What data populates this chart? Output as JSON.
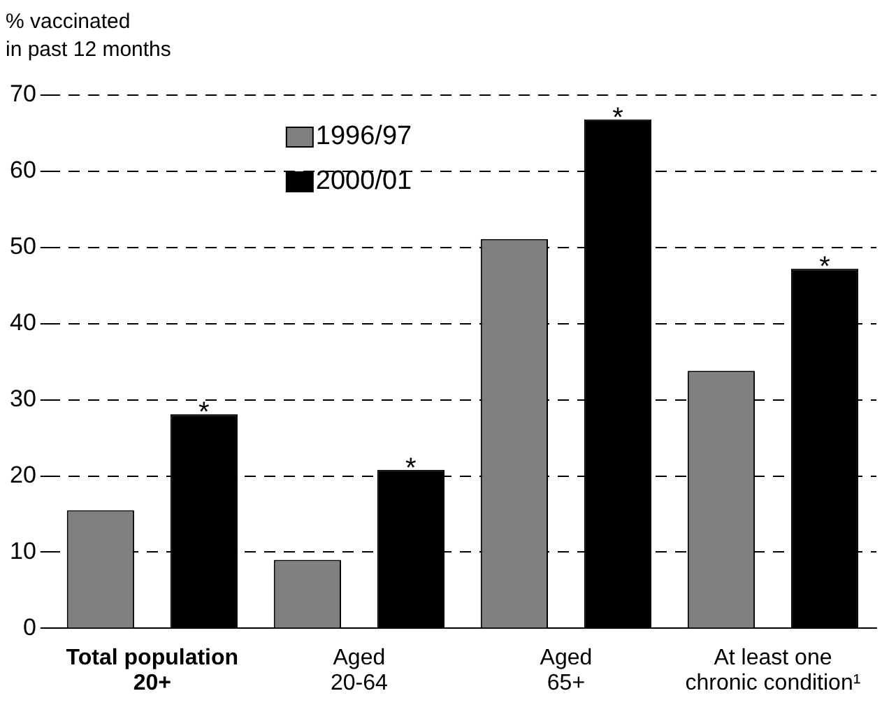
{
  "chart_data": {
    "type": "bar",
    "ylabel": "% vaccinated\nin past 12 months",
    "categories": [
      "Total population\n20+",
      "Aged\n20-64",
      "Aged\n65+",
      "At least one\nchronic condition¹"
    ],
    "series": [
      {
        "name": "1996/97",
        "color": "#808080",
        "values": [
          15.5,
          9.0,
          51.1,
          33.8
        ]
      },
      {
        "name": "2000/01",
        "color": "#000000",
        "values": [
          28.1,
          20.8,
          66.8,
          47.2
        ]
      }
    ],
    "ylim": [
      0,
      70
    ],
    "yticks": [
      0,
      10,
      20,
      30,
      40,
      50,
      60,
      70
    ],
    "grid": "y",
    "legend": "top left",
    "annotations": [
      "*",
      "*",
      "*",
      "*"
    ]
  }
}
